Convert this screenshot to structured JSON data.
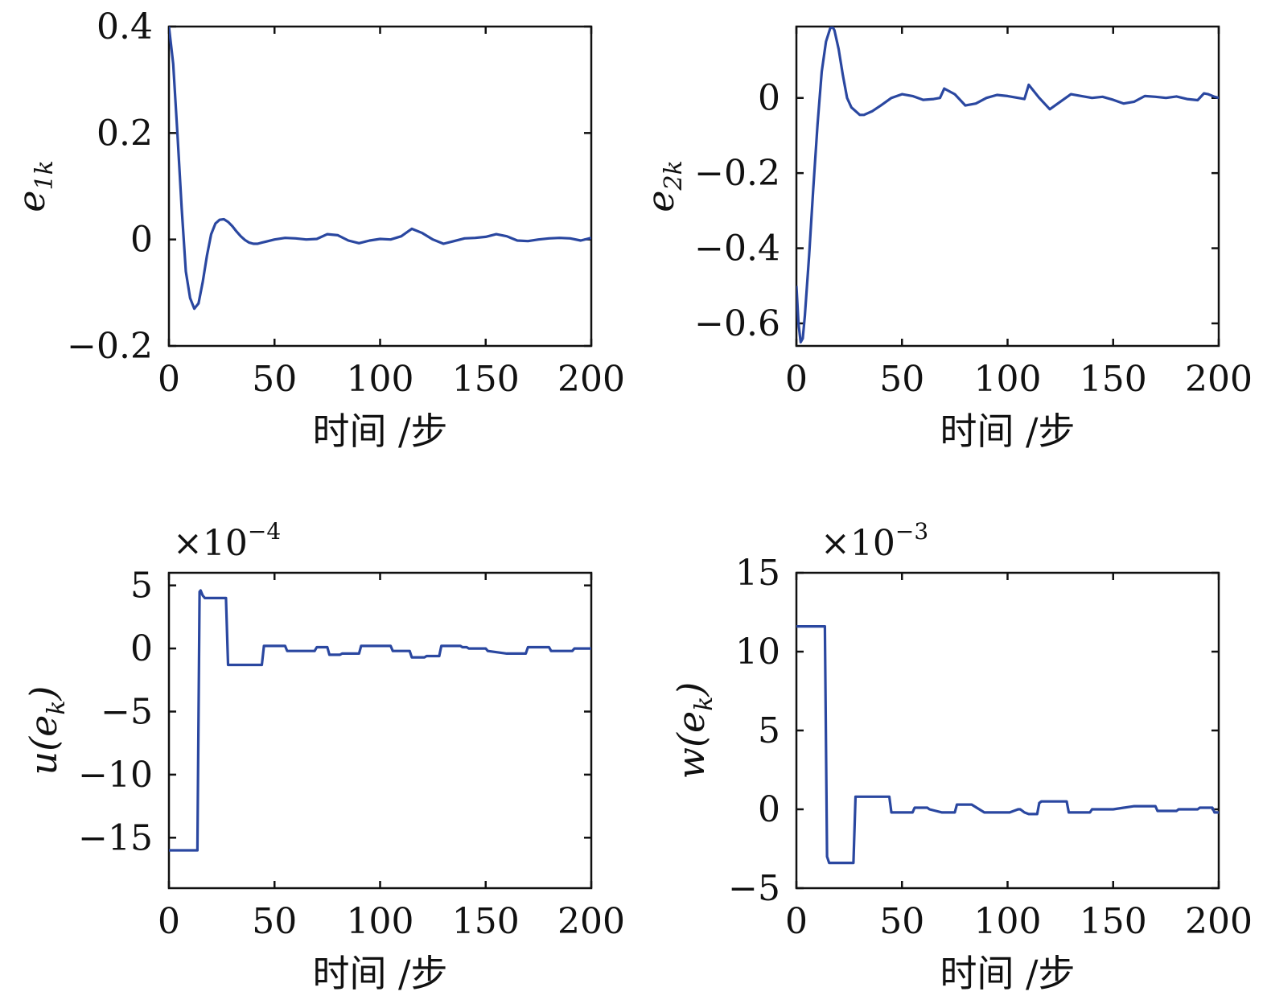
{
  "figure": {
    "line_color": "#2a47a0"
  },
  "chart_data": [
    {
      "id": "e1k",
      "type": "line",
      "xlabel": "时间 /步",
      "ylabel": "e1k",
      "ylabel_main": "e",
      "ylabel_sub": "1k",
      "exponent_label": "",
      "xlim": [
        0,
        200
      ],
      "ylim": [
        -0.2,
        0.4
      ],
      "xticks": [
        0,
        50,
        100,
        150,
        200
      ],
      "xtick_labels": [
        "0",
        "50",
        "100",
        "150",
        "200"
      ],
      "yticks": [
        -0.2,
        0,
        0.2,
        0.4
      ],
      "ytick_labels": [
        "−0.2",
        "0",
        "0.2",
        "0.4"
      ],
      "series": [
        {
          "color": "#2a47a0",
          "x": [
            0,
            2,
            4,
            6,
            8,
            10,
            12,
            14,
            16,
            18,
            20,
            22,
            24,
            26,
            28,
            30,
            32,
            34,
            36,
            38,
            40,
            42,
            44,
            46,
            50,
            55,
            60,
            65,
            70,
            75,
            80,
            85,
            90,
            95,
            100,
            105,
            110,
            115,
            120,
            125,
            130,
            135,
            140,
            145,
            150,
            155,
            160,
            165,
            170,
            175,
            180,
            185,
            190,
            195,
            200
          ],
          "y": [
            0.4,
            0.33,
            0.2,
            0.06,
            -0.06,
            -0.11,
            -0.13,
            -0.12,
            -0.08,
            -0.03,
            0.01,
            0.03,
            0.037,
            0.038,
            0.033,
            0.025,
            0.015,
            0.006,
            -0.001,
            -0.006,
            -0.008,
            -0.008,
            -0.006,
            -0.004,
            0.0,
            0.003,
            0.002,
            0.0,
            0.001,
            0.01,
            0.008,
            -0.002,
            -0.007,
            -0.002,
            0.001,
            0.0,
            0.006,
            0.02,
            0.012,
            0.0,
            -0.008,
            -0.003,
            0.002,
            0.003,
            0.005,
            0.01,
            0.006,
            -0.002,
            -0.003,
            0.0,
            0.002,
            0.003,
            0.002,
            -0.002,
            0.003
          ]
        }
      ]
    },
    {
      "id": "e2k",
      "type": "line",
      "xlabel": "时间 /步",
      "ylabel": "e2k",
      "ylabel_main": "e",
      "ylabel_sub": "2k",
      "exponent_label": "",
      "xlim": [
        0,
        200
      ],
      "ylim": [
        -0.66,
        0.19
      ],
      "xticks": [
        0,
        50,
        100,
        150,
        200
      ],
      "xtick_labels": [
        "0",
        "50",
        "100",
        "150",
        "200"
      ],
      "yticks": [
        -0.6,
        -0.4,
        -0.2,
        0
      ],
      "ytick_labels": [
        "−0.6",
        "−0.4",
        "−0.2",
        "0"
      ],
      "series": [
        {
          "color": "#2a47a0",
          "x": [
            0,
            1,
            2,
            3,
            4,
            6,
            8,
            10,
            12,
            14,
            16,
            17,
            18,
            20,
            22,
            24,
            26,
            28,
            30,
            32,
            34,
            36,
            40,
            45,
            50,
            55,
            60,
            65,
            68,
            70,
            75,
            80,
            85,
            90,
            95,
            100,
            105,
            108,
            110,
            115,
            120,
            125,
            130,
            135,
            140,
            145,
            150,
            155,
            160,
            165,
            170,
            175,
            180,
            185,
            190,
            193,
            195,
            198,
            200
          ],
          "y": [
            -0.5,
            -0.6,
            -0.65,
            -0.64,
            -0.58,
            -0.42,
            -0.24,
            -0.07,
            0.07,
            0.15,
            0.185,
            0.19,
            0.18,
            0.13,
            0.06,
            0.0,
            -0.025,
            -0.035,
            -0.045,
            -0.045,
            -0.04,
            -0.035,
            -0.02,
            0.0,
            0.01,
            0.005,
            -0.005,
            -0.003,
            0.0,
            0.025,
            0.01,
            -0.02,
            -0.015,
            0.0,
            0.008,
            0.005,
            0.0,
            -0.003,
            0.035,
            0.0,
            -0.03,
            -0.01,
            0.01,
            0.005,
            0.0,
            0.003,
            -0.005,
            -0.015,
            -0.01,
            0.005,
            0.003,
            0.0,
            0.004,
            -0.003,
            -0.006,
            0.012,
            0.01,
            0.003,
            0.0
          ]
        }
      ]
    },
    {
      "id": "u",
      "type": "line",
      "xlabel": "时间 /步",
      "ylabel": "u(ek)",
      "ylabel_main": "u(e",
      "ylabel_sub": "k",
      "ylabel_tail": ")",
      "exponent_label": "×10",
      "exponent_power": "−4",
      "xlim": [
        0,
        200
      ],
      "ylim": [
        -19,
        6
      ],
      "xticks": [
        0,
        50,
        100,
        150,
        200
      ],
      "xtick_labels": [
        "0",
        "50",
        "100",
        "150",
        "200"
      ],
      "yticks": [
        -15,
        -10,
        -5,
        0,
        5
      ],
      "ytick_labels": [
        "−15",
        "−10",
        "−5",
        "0",
        "5"
      ],
      "series": [
        {
          "color": "#2a47a0",
          "x": [
            0,
            13.5,
            14.5,
            15,
            16,
            17,
            27,
            28,
            29,
            44,
            45,
            46,
            55,
            56,
            62,
            63,
            69,
            70,
            75,
            76,
            81,
            82,
            90,
            91,
            100,
            101,
            105,
            106,
            109,
            110,
            114,
            115,
            116,
            121,
            122,
            128,
            129,
            131,
            138,
            139,
            141,
            142,
            150,
            151,
            160,
            161,
            169,
            170,
            180,
            181,
            191,
            192,
            200
          ],
          "y": [
            -16,
            -16,
            4.5,
            4.6,
            4.2,
            4.0,
            4.0,
            -1.3,
            -1.3,
            -1.3,
            0.2,
            0.2,
            0.2,
            -0.2,
            -0.2,
            -0.2,
            -0.2,
            0.1,
            0.1,
            -0.5,
            -0.5,
            -0.4,
            -0.4,
            0.2,
            0.2,
            0.2,
            0.2,
            -0.2,
            -0.2,
            -0.2,
            -0.2,
            -0.7,
            -0.7,
            -0.7,
            -0.6,
            -0.6,
            0.2,
            0.2,
            0.2,
            0.1,
            0.1,
            0.0,
            0.0,
            -0.2,
            -0.4,
            -0.4,
            -0.4,
            0.1,
            0.1,
            -0.2,
            -0.2,
            0.0,
            0.0
          ]
        }
      ]
    },
    {
      "id": "w",
      "type": "line",
      "xlabel": "时间 /步",
      "ylabel": "w(ek)",
      "ylabel_main": "w(e",
      "ylabel_sub": "k",
      "ylabel_tail": ")",
      "exponent_label": "×10",
      "exponent_power": "−3",
      "xlim": [
        0,
        200
      ],
      "ylim": [
        -5,
        15
      ],
      "xticks": [
        0,
        50,
        100,
        150,
        200
      ],
      "xtick_labels": [
        "0",
        "50",
        "100",
        "150",
        "200"
      ],
      "yticks": [
        -5,
        0,
        5,
        10,
        15
      ],
      "ytick_labels": [
        "−5",
        "0",
        "5",
        "10",
        "15"
      ],
      "series": [
        {
          "color": "#2a47a0",
          "x": [
            0,
            13.5,
            14.5,
            15.5,
            17,
            27,
            28,
            29,
            44,
            45,
            46,
            55,
            56,
            62,
            63,
            69,
            70,
            75,
            76,
            82,
            83,
            89,
            90,
            100,
            101,
            105,
            106,
            108,
            110,
            114,
            115,
            116,
            119,
            128,
            129,
            131,
            139,
            140,
            143,
            150,
            155,
            160,
            170,
            171,
            180,
            181,
            190,
            191,
            197,
            198,
            200
          ],
          "y": [
            11.6,
            11.6,
            -3.0,
            -3.4,
            -3.4,
            -3.4,
            0.8,
            0.8,
            0.8,
            -0.2,
            -0.2,
            -0.2,
            0.1,
            0.1,
            0.0,
            -0.2,
            -0.2,
            -0.2,
            0.3,
            0.3,
            0.3,
            -0.2,
            -0.2,
            -0.2,
            -0.2,
            0.0,
            0.0,
            -0.2,
            -0.3,
            -0.3,
            0.4,
            0.5,
            0.5,
            0.5,
            -0.2,
            -0.2,
            -0.2,
            0.0,
            0.0,
            0.0,
            0.1,
            0.2,
            0.2,
            -0.1,
            -0.1,
            0.0,
            0.0,
            0.1,
            0.1,
            -0.2,
            -0.2
          ]
        }
      ]
    }
  ]
}
